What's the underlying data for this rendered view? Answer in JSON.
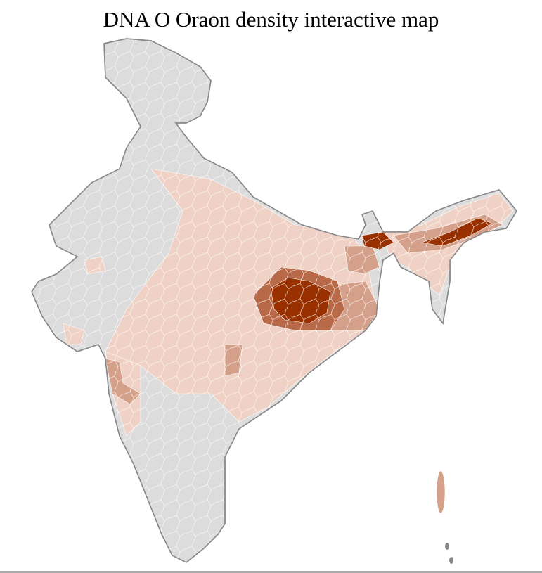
{
  "title": "DNA O Oraon density interactive map",
  "colors": {
    "no_data": "#dcdcdc",
    "low": "#efd2c5",
    "medium": "#d4a08a",
    "high": "#b86a48",
    "very_high": "#983000",
    "border": "#888888",
    "district_border": "#ffffff"
  }
}
